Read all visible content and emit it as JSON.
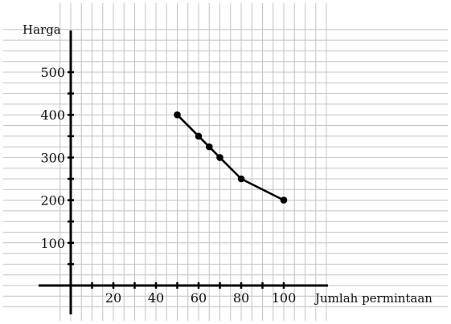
{
  "chart_data": {
    "type": "line",
    "title": "",
    "xlabel": "Jumlah permintaan",
    "ylabel": "Harga",
    "x": [
      50,
      60,
      65,
      70,
      80,
      100
    ],
    "series": [
      {
        "values": [
          400,
          350,
          325,
          300,
          250,
          200
        ]
      }
    ],
    "xlim": [
      -5,
      120
    ],
    "ylim": [
      -65,
      600
    ],
    "x_ticks": [
      20,
      40,
      60,
      80,
      100
    ],
    "x_tick_labels": [
      "20",
      "40",
      "60",
      "80",
      "100"
    ],
    "x_minor_ticks": [
      10,
      30,
      50,
      70,
      90
    ],
    "y_ticks": [
      100,
      200,
      300,
      400,
      500
    ],
    "y_tick_labels": [
      "100",
      "200",
      "300",
      "400",
      "500"
    ],
    "y_minor_ticks": [
      50,
      150,
      250,
      350,
      450
    ],
    "grid": true,
    "line_color": "#000000",
    "marker": "filled-circle"
  }
}
